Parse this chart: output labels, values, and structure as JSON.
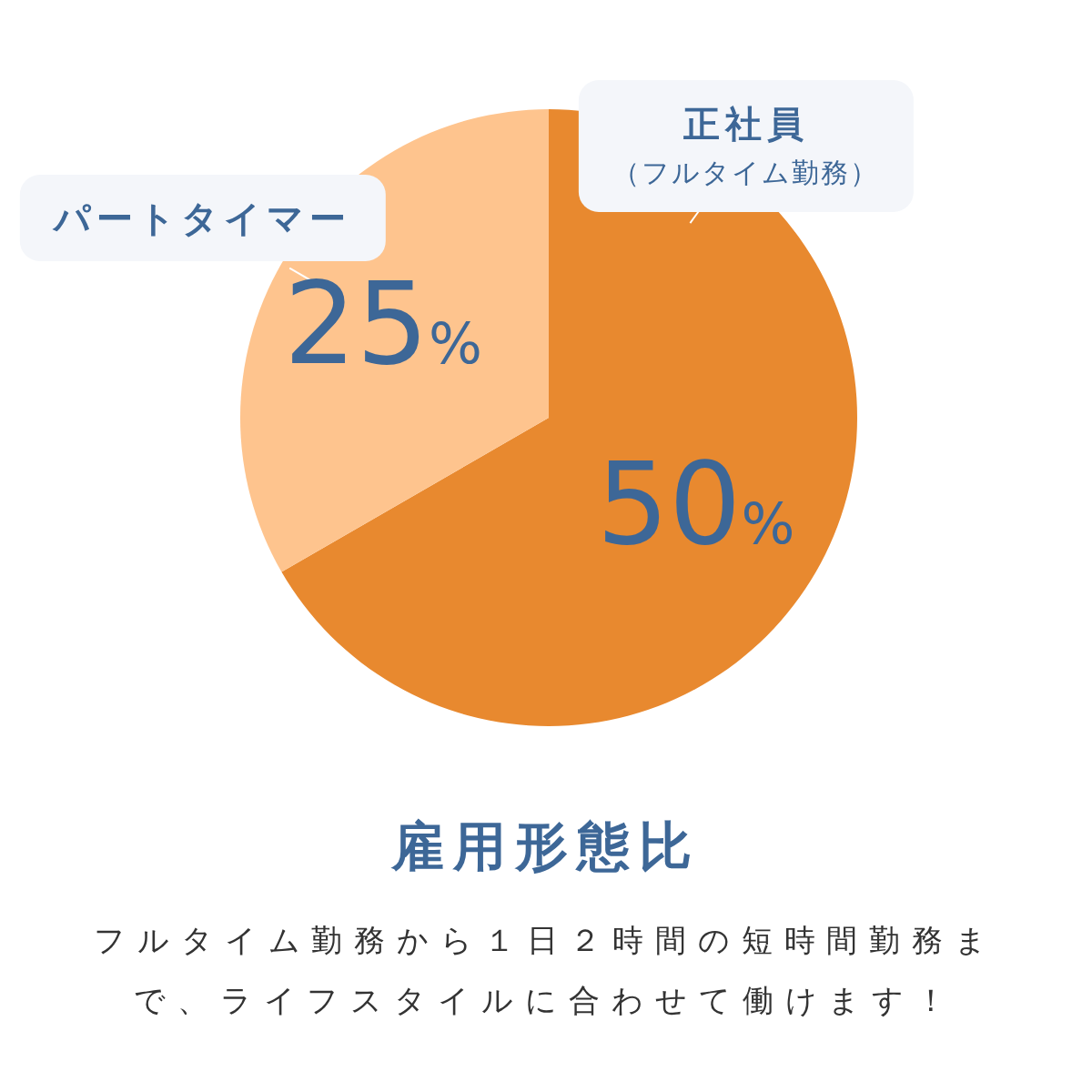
{
  "chart_data": {
    "type": "pie",
    "title": "雇用形態比",
    "categories": [
      "正社員（フルタイム勤務）",
      "パートタイマー"
    ],
    "values": [
      50,
      25
    ],
    "colors": [
      "#e8892f",
      "#fec48e"
    ],
    "value_labels": [
      "50%",
      "25%"
    ],
    "annotations": [
      "フルタイム勤務から１日２時間の短時間勤務まで、ライフスタイルに合わせて働けます！"
    ]
  }
}
